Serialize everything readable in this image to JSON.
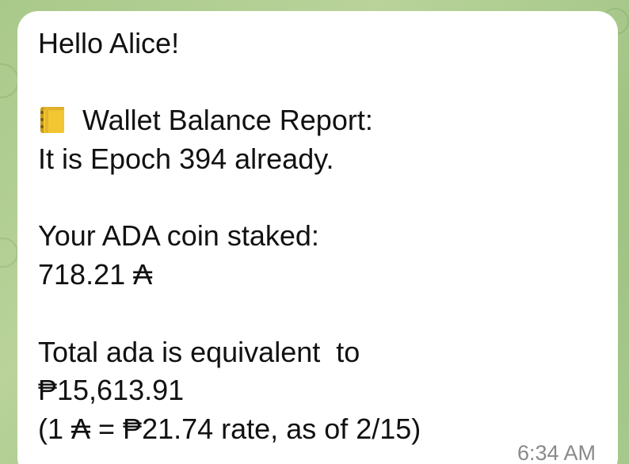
{
  "message": {
    "greeting": "Hello Alice!",
    "report_icon": "notebook-icon",
    "report_title": "Wallet Balance Report:",
    "epoch_line": "It is Epoch 394 already.",
    "staked_label": "Your ADA coin staked:",
    "staked_value": "718.21 ₳",
    "equivalent_label": "Total ada is equivalent  to",
    "equivalent_value": "₱15,613.91",
    "rate_line": "(1 ₳ = ₱21.74 rate, as of 2/15)",
    "time": "6:34 AM"
  },
  "colors": {
    "background": "#a9c98a",
    "bubble": "#ffffff",
    "text": "#111111",
    "time": "#8a8a8a"
  }
}
